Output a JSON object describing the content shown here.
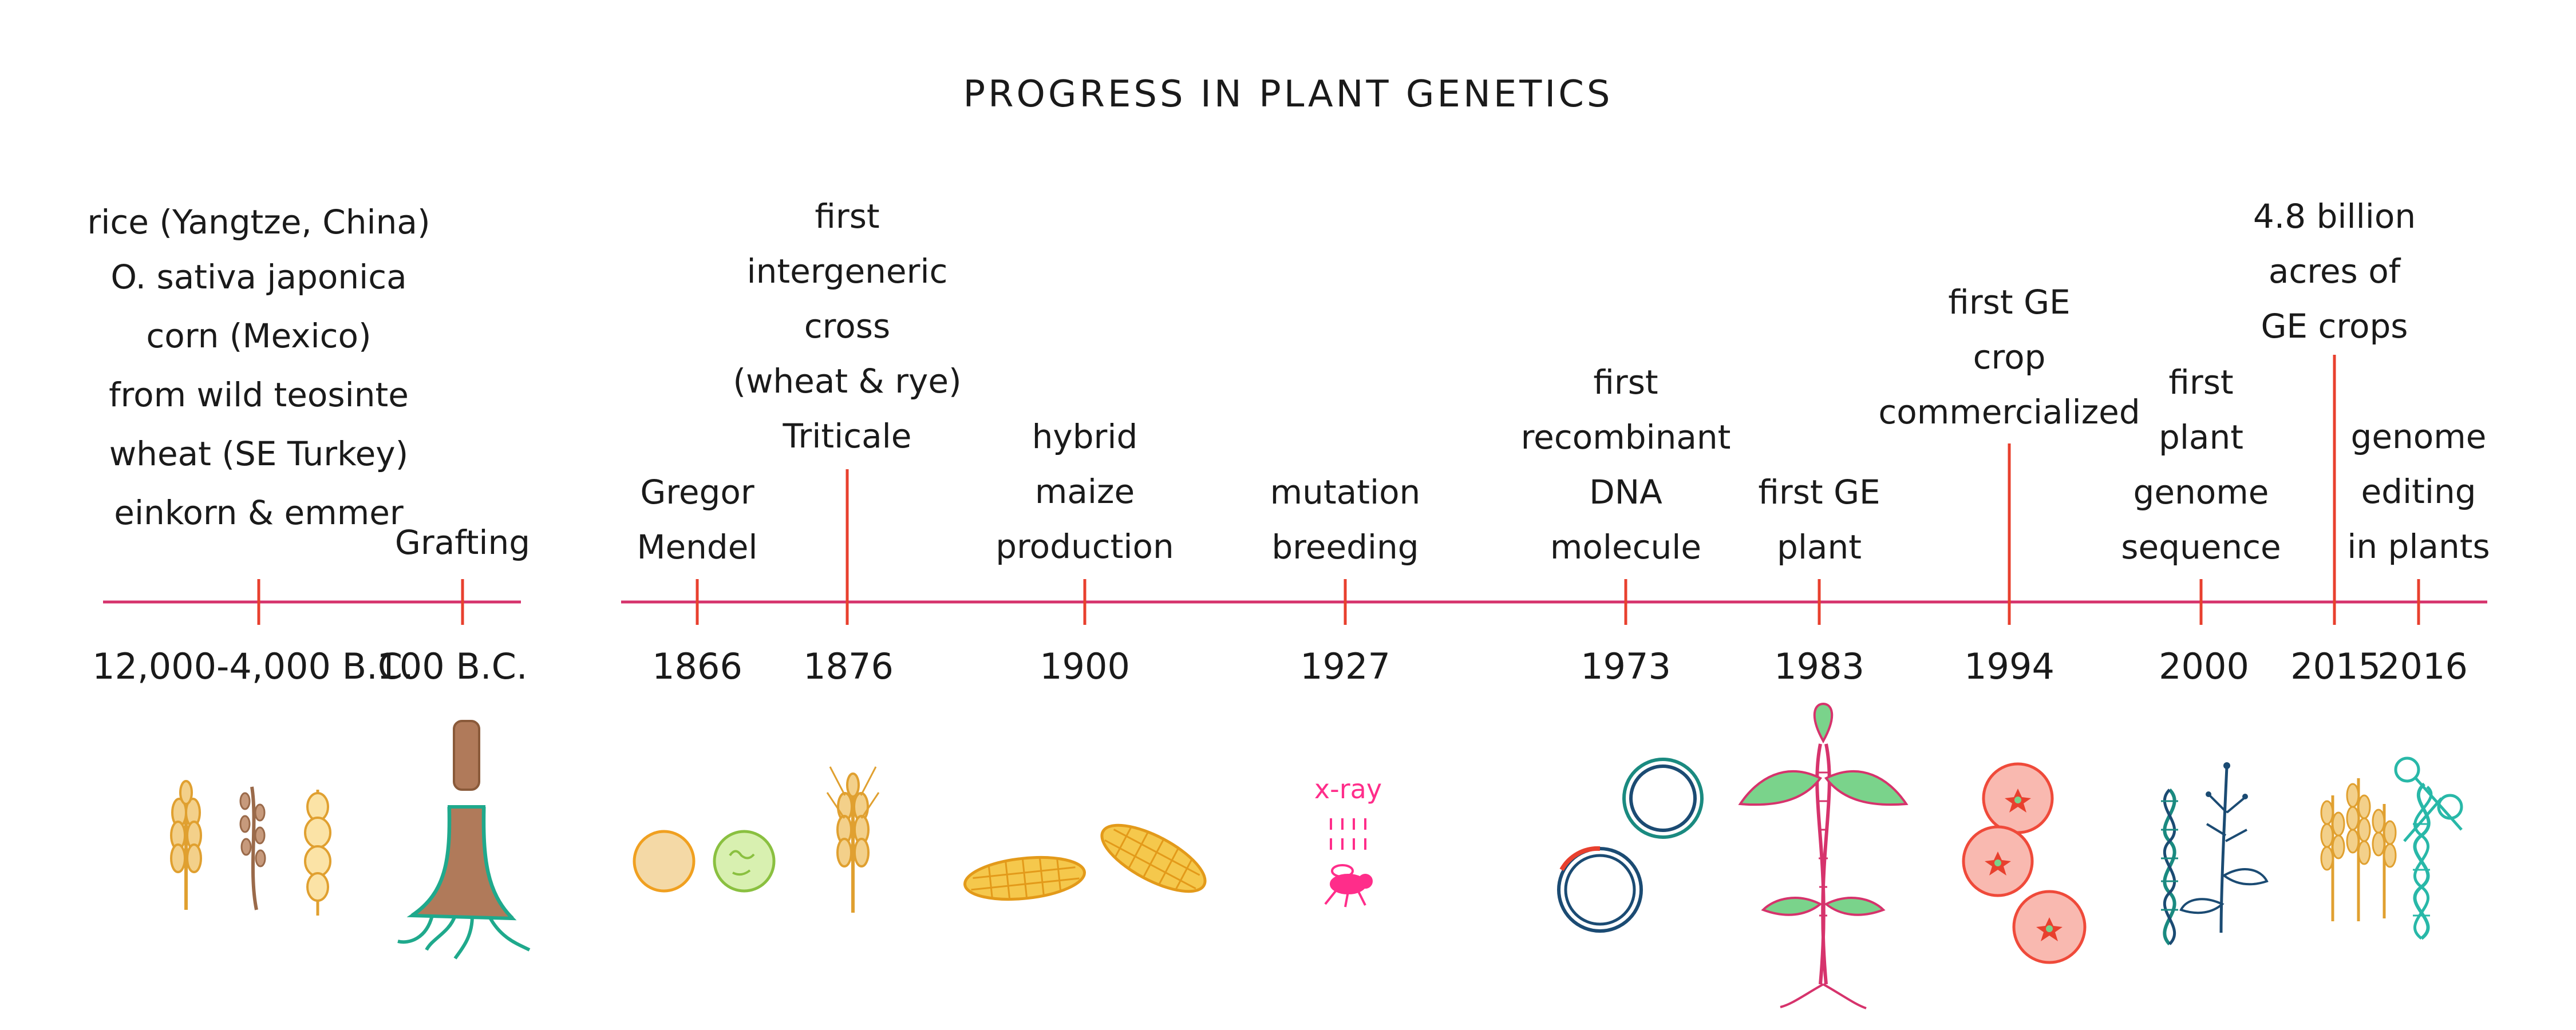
{
  "title": "PROGRESS IN PLANT GENETICS",
  "colors": {
    "axis": "#d6336c",
    "tick": "#e8402e",
    "text": "#1a1a1a",
    "wheat": "#e0a030",
    "rice": "#9a6a4a",
    "pea_yellow": "#f4d9a6",
    "pea_outline": "#f0a020",
    "pea_green": "#d8f0b0",
    "pea_green_outline": "#8ac040",
    "corn": "#f5c84c",
    "corn_outline": "#e39a1a",
    "trunk": "#b07a5a",
    "root": "#1fa98c",
    "dna_ring_teal": "#1a8a80",
    "dna_ring_navy": "#1b4b73",
    "dna_ring_red": "#e8402e",
    "xray": "#ff2d8a",
    "tomato": "#f9b9b0",
    "tomato_outline": "#ef4a3a",
    "leaf": "#7ad38b",
    "leaf_outline": "#d6336c",
    "dna_teal": "#28b8a8"
  },
  "events": [
    {
      "id": "neolithic",
      "year": "12,000-4,000 B.C.",
      "lines": [
        "rice (Yangtze, China)",
        "O. sativa japonica",
        "corn (Mexico)",
        "from wild teosinte",
        "wheat (SE Turkey)",
        "einkorn & emmer"
      ],
      "icon": "wheat-rice-corn-icon"
    },
    {
      "id": "grafting",
      "year": "100 B.C.",
      "lines": [
        "Grafting"
      ],
      "icon": "tree-graft-icon"
    },
    {
      "id": "mendel",
      "year": "1866",
      "lines": [
        "Gregor",
        "Mendel"
      ],
      "icon": "peas-icon"
    },
    {
      "id": "triticale",
      "year": "1876",
      "lines": [
        "first",
        "intergeneric",
        "cross",
        "(wheat & rye)",
        "Triticale"
      ],
      "icon": "wheat-ear-icon"
    },
    {
      "id": "hybrid-maize",
      "year": "1900",
      "lines": [
        "hybrid",
        "maize",
        "production"
      ],
      "icon": "corn-cobs-icon"
    },
    {
      "id": "mutation",
      "year": "1927",
      "lines": [
        "mutation",
        "breeding"
      ],
      "icon": "xray-fly-icon",
      "icon_text": "x-ray"
    },
    {
      "id": "recombinant",
      "year": "1973",
      "lines": [
        "first",
        "recombinant",
        "DNA",
        "molecule"
      ],
      "icon": "plasmid-rings-icon"
    },
    {
      "id": "ge-plant",
      "year": "1983",
      "lines": [
        "first GE",
        "plant"
      ],
      "icon": "ge-plant-icon"
    },
    {
      "id": "ge-crop",
      "year": "1994",
      "lines": [
        "first GE",
        "crop",
        "commercialized"
      ],
      "icon": "tomatoes-icon"
    },
    {
      "id": "genome-seq",
      "year": "2000",
      "lines": [
        "first",
        "plant",
        "genome",
        "sequence"
      ],
      "icon": "dna-plant-icon"
    },
    {
      "id": "ge-acres",
      "year": "2015",
      "lines": [
        "4.8 billion",
        "acres of",
        "GE crops"
      ],
      "icon": "crops-icon"
    },
    {
      "id": "genome-edit",
      "year": "2016",
      "lines": [
        "genome",
        "editing",
        "in plants"
      ],
      "icon": "dna-scissors-icon"
    }
  ]
}
